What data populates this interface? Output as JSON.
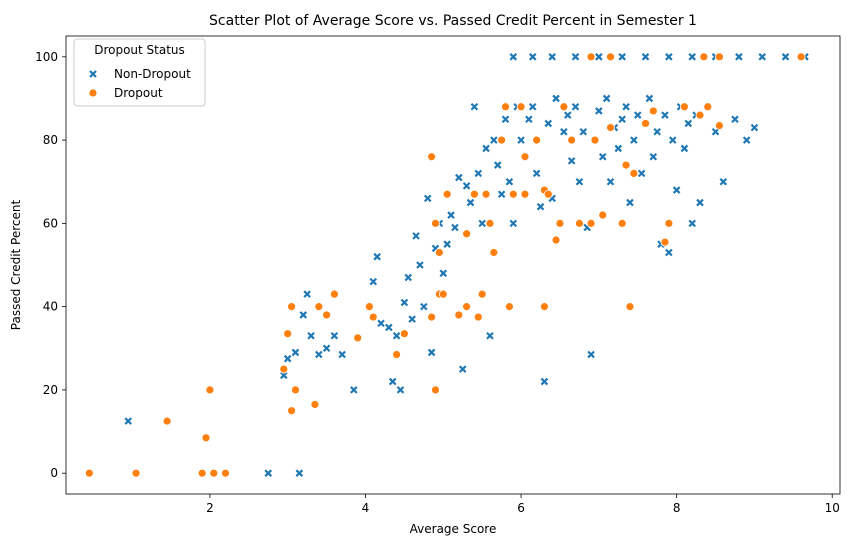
{
  "chart_data": {
    "type": "scatter",
    "title": "Scatter Plot of Average Score vs. Passed Credit Percent in Semester 1",
    "xlabel": "Average Score",
    "ylabel": "Passed Credit Percent",
    "xlim": [
      0.15,
      10.1
    ],
    "ylim": [
      -5,
      105
    ],
    "xticks": [
      2,
      4,
      6,
      8,
      10
    ],
    "yticks": [
      0,
      20,
      40,
      60,
      80,
      100
    ],
    "grid": false,
    "legend": {
      "title": "Dropout Status",
      "placement": "top-left",
      "entries": [
        "Non-Dropout",
        "Dropout"
      ]
    },
    "series": [
      {
        "name": "Non-Dropout",
        "marker": "x",
        "color": "#1f77b4",
        "points": [
          [
            0.95,
            12.5
          ],
          [
            2.75,
            0
          ],
          [
            3.15,
            0
          ],
          [
            2.95,
            23.5
          ],
          [
            3.0,
            27.5
          ],
          [
            3.1,
            29
          ],
          [
            3.2,
            38
          ],
          [
            3.25,
            43
          ],
          [
            3.3,
            33
          ],
          [
            3.4,
            28.5
          ],
          [
            3.5,
            30
          ],
          [
            3.6,
            33
          ],
          [
            3.7,
            28.5
          ],
          [
            3.85,
            20
          ],
          [
            4.05,
            40
          ],
          [
            4.1,
            46
          ],
          [
            4.15,
            52
          ],
          [
            4.2,
            36
          ],
          [
            4.3,
            35
          ],
          [
            4.35,
            22
          ],
          [
            4.4,
            33
          ],
          [
            4.45,
            20
          ],
          [
            4.5,
            41
          ],
          [
            4.55,
            47
          ],
          [
            4.6,
            37
          ],
          [
            4.65,
            57
          ],
          [
            4.7,
            50
          ],
          [
            4.75,
            40
          ],
          [
            4.8,
            66
          ],
          [
            4.85,
            29
          ],
          [
            4.9,
            54
          ],
          [
            4.95,
            60
          ],
          [
            5.0,
            48
          ],
          [
            5.05,
            55
          ],
          [
            5.1,
            62
          ],
          [
            5.15,
            59
          ],
          [
            5.2,
            71
          ],
          [
            5.25,
            25
          ],
          [
            5.3,
            69
          ],
          [
            5.35,
            65
          ],
          [
            5.4,
            88
          ],
          [
            5.45,
            72
          ],
          [
            5.5,
            60
          ],
          [
            5.55,
            78
          ],
          [
            5.6,
            33
          ],
          [
            5.65,
            80
          ],
          [
            5.7,
            74
          ],
          [
            5.75,
            67
          ],
          [
            5.8,
            85
          ],
          [
            5.85,
            70
          ],
          [
            5.9,
            60
          ],
          [
            5.95,
            88
          ],
          [
            6.0,
            80
          ],
          [
            6.05,
            76
          ],
          [
            6.1,
            85
          ],
          [
            6.15,
            88
          ],
          [
            6.2,
            72
          ],
          [
            6.25,
            64
          ],
          [
            6.3,
            22
          ],
          [
            6.35,
            84
          ],
          [
            6.4,
            66
          ],
          [
            6.45,
            90
          ],
          [
            6.5,
            60
          ],
          [
            6.55,
            82
          ],
          [
            6.6,
            86
          ],
          [
            6.65,
            75
          ],
          [
            6.7,
            88
          ],
          [
            6.75,
            70
          ],
          [
            6.8,
            82
          ],
          [
            6.85,
            59
          ],
          [
            6.9,
            28.5
          ],
          [
            6.95,
            80
          ],
          [
            7.0,
            87
          ],
          [
            7.05,
            76
          ],
          [
            7.1,
            90
          ],
          [
            7.15,
            70
          ],
          [
            7.2,
            83
          ],
          [
            7.25,
            78
          ],
          [
            7.3,
            85
          ],
          [
            7.35,
            88
          ],
          [
            7.4,
            65
          ],
          [
            7.45,
            80
          ],
          [
            7.5,
            86
          ],
          [
            7.55,
            72
          ],
          [
            7.6,
            84
          ],
          [
            7.65,
            90
          ],
          [
            7.7,
            76
          ],
          [
            7.75,
            82
          ],
          [
            7.8,
            55
          ],
          [
            7.85,
            86
          ],
          [
            7.9,
            53
          ],
          [
            7.95,
            80
          ],
          [
            8.0,
            68
          ],
          [
            8.05,
            88
          ],
          [
            8.1,
            78
          ],
          [
            8.15,
            84
          ],
          [
            8.2,
            60
          ],
          [
            8.25,
            86
          ],
          [
            8.3,
            65
          ],
          [
            8.4,
            88
          ],
          [
            8.5,
            82
          ],
          [
            8.6,
            70
          ],
          [
            8.75,
            85
          ],
          [
            8.9,
            80
          ],
          [
            9.0,
            83
          ],
          [
            5.9,
            100
          ],
          [
            6.15,
            100
          ],
          [
            6.4,
            100
          ],
          [
            6.7,
            100
          ],
          [
            7.0,
            100
          ],
          [
            7.3,
            100
          ],
          [
            7.6,
            100
          ],
          [
            7.9,
            100
          ],
          [
            8.2,
            100
          ],
          [
            8.5,
            100
          ],
          [
            8.8,
            100
          ],
          [
            9.1,
            100
          ],
          [
            9.4,
            100
          ],
          [
            9.65,
            100
          ]
        ]
      },
      {
        "name": "Dropout",
        "marker": "o",
        "color": "#ff7f0e",
        "points": [
          [
            0.45,
            0
          ],
          [
            1.05,
            0
          ],
          [
            1.45,
            12.5
          ],
          [
            1.9,
            0
          ],
          [
            1.95,
            8.5
          ],
          [
            2.0,
            20
          ],
          [
            2.05,
            0
          ],
          [
            2.2,
            0
          ],
          [
            2.95,
            25
          ],
          [
            3.0,
            33.5
          ],
          [
            3.05,
            15
          ],
          [
            3.05,
            40
          ],
          [
            3.1,
            20
          ],
          [
            3.35,
            16.5
          ],
          [
            3.4,
            40
          ],
          [
            3.5,
            38
          ],
          [
            3.6,
            43
          ],
          [
            3.9,
            32.5
          ],
          [
            4.05,
            40
          ],
          [
            4.1,
            37.5
          ],
          [
            4.4,
            28.5
          ],
          [
            4.5,
            33.5
          ],
          [
            4.85,
            37.5
          ],
          [
            4.85,
            76
          ],
          [
            4.9,
            60
          ],
          [
            4.9,
            20
          ],
          [
            4.95,
            43
          ],
          [
            4.95,
            53
          ],
          [
            5.0,
            43
          ],
          [
            5.05,
            67
          ],
          [
            5.2,
            38
          ],
          [
            5.3,
            57.5
          ],
          [
            5.3,
            40
          ],
          [
            5.4,
            67
          ],
          [
            5.45,
            37.5
          ],
          [
            5.5,
            43
          ],
          [
            5.55,
            67
          ],
          [
            5.6,
            60
          ],
          [
            5.65,
            53
          ],
          [
            5.75,
            80
          ],
          [
            5.8,
            88
          ],
          [
            5.85,
            40
          ],
          [
            5.9,
            67
          ],
          [
            6.0,
            88
          ],
          [
            6.05,
            67
          ],
          [
            6.05,
            76
          ],
          [
            6.2,
            80
          ],
          [
            6.3,
            68
          ],
          [
            6.35,
            67
          ],
          [
            6.45,
            56
          ],
          [
            6.5,
            60
          ],
          [
            6.55,
            88
          ],
          [
            6.65,
            80
          ],
          [
            6.75,
            60
          ],
          [
            6.9,
            60
          ],
          [
            6.95,
            80
          ],
          [
            7.05,
            62
          ],
          [
            7.15,
            83
          ],
          [
            7.3,
            60
          ],
          [
            7.35,
            74
          ],
          [
            7.45,
            72
          ],
          [
            7.6,
            84
          ],
          [
            7.7,
            87
          ],
          [
            7.85,
            55.5
          ],
          [
            7.9,
            60
          ],
          [
            8.1,
            88
          ],
          [
            8.3,
            86
          ],
          [
            8.4,
            88
          ],
          [
            8.55,
            83.5
          ],
          [
            7.4,
            40
          ],
          [
            6.3,
            40
          ],
          [
            6.9,
            100
          ],
          [
            7.15,
            100
          ],
          [
            8.35,
            100
          ],
          [
            8.55,
            100
          ],
          [
            9.6,
            100
          ]
        ]
      }
    ]
  }
}
